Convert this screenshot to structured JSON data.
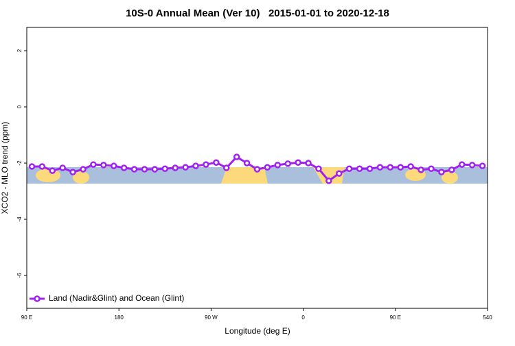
{
  "chart_data": {
    "type": "line",
    "title": "10S-0 Annual Mean (Ver 10)   2015-01-01 to 2020-12-18",
    "x_label": "Longitude (deg E)",
    "y_label": "XCO2 - MLO trend (ppm)",
    "x": [
      95,
      105,
      115,
      125,
      135,
      145,
      155,
      165,
      175,
      185,
      195,
      205,
      215,
      225,
      235,
      245,
      255,
      265,
      275,
      285,
      295,
      305,
      315,
      325,
      335,
      345,
      355,
      365,
      375,
      385,
      395,
      405,
      415,
      425,
      435,
      445,
      455,
      465,
      475,
      485,
      495,
      505,
      515,
      525,
      535
    ],
    "series": [
      {
        "name": "Land (Nadir&Glint) and Ocean (Glint)",
        "color": "#a020f0",
        "values": [
          -2.12,
          -2.12,
          -2.27,
          -2.17,
          -2.32,
          -2.22,
          -2.05,
          -2.07,
          -2.1,
          -2.17,
          -2.22,
          -2.22,
          -2.22,
          -2.2,
          -2.17,
          -2.15,
          -2.1,
          -2.05,
          -1.98,
          -2.17,
          -1.78,
          -2.0,
          -2.22,
          -2.15,
          -2.07,
          -2.02,
          -1.98,
          -2.0,
          -2.2,
          -2.63,
          -2.37,
          -2.2,
          -2.2,
          -2.2,
          -2.15,
          -2.15,
          -2.15,
          -2.12,
          -2.24,
          -2.2,
          -2.32,
          -2.24,
          -2.05,
          -2.07,
          -2.1
        ]
      }
    ],
    "xlim": [
      90,
      540
    ],
    "xticks": [
      {
        "value": 90,
        "label": "90 E"
      },
      180,
      {
        "value": 270,
        "label": "90 W"
      },
      {
        "value": 360,
        "label": "0"
      },
      {
        "value": 450,
        "label": "90 E"
      },
      540
    ],
    "ylim": [
      -7.17,
      2.83
    ],
    "yticks": [
      2,
      0,
      -2,
      -4,
      -6
    ],
    "legend": "bottom-left"
  }
}
